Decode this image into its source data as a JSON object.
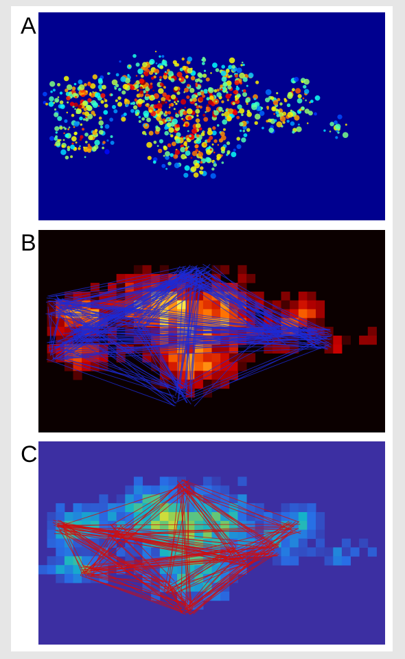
{
  "panels": [
    {
      "label": "A",
      "colormap": "jet",
      "background": "#00008f"
    },
    {
      "label": "B",
      "colormap": "hot",
      "background": "#0b0000",
      "line_color": "#1b2ad6"
    },
    {
      "label": "C",
      "colormap": "parula",
      "background": "#3c2fa2",
      "line_color": "#d10d0d"
    }
  ]
}
